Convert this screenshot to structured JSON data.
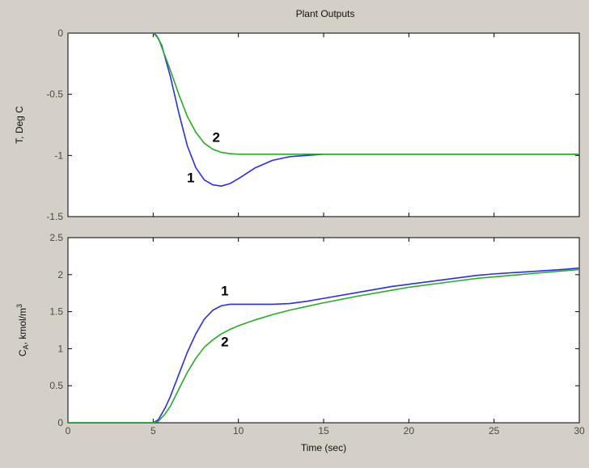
{
  "figure_title": "Plant Outputs",
  "colors": {
    "background": "#d4d0c8",
    "plot_bg": "#ffffff",
    "series_1": "#2a2aff",
    "series_2": "#22b022",
    "axes": "#000000"
  },
  "chart_data": [
    {
      "type": "line",
      "title": "Plant Outputs",
      "xlabel": "",
      "ylabel": "T, Deg C",
      "xlim": [
        0,
        30
      ],
      "ylim": [
        -1.5,
        0
      ],
      "xticks": [
        0,
        5,
        10,
        15,
        20,
        25,
        30
      ],
      "xtick_labels": [
        "",
        "",
        "",
        "",
        "",
        "",
        ""
      ],
      "yticks": [
        0,
        -0.5,
        -1,
        -1.5
      ],
      "ytick_labels": [
        "0",
        "-0.5",
        "-1",
        "-1.5"
      ],
      "grid": false,
      "series": [
        {
          "name": "1",
          "color": "#2a2aff",
          "x": [
            0,
            5,
            5.2,
            5.5,
            6,
            6.5,
            7,
            7.5,
            8,
            8.5,
            9,
            9.5,
            10,
            11,
            12,
            13,
            14,
            15,
            20,
            30
          ],
          "y": [
            0,
            0,
            -0.02,
            -0.1,
            -0.35,
            -0.65,
            -0.92,
            -1.1,
            -1.2,
            -1.24,
            -1.25,
            -1.23,
            -1.19,
            -1.1,
            -1.04,
            -1.01,
            -1.0,
            -0.99,
            -0.99,
            -0.99
          ]
        },
        {
          "name": "2",
          "color": "#22b022",
          "x": [
            0,
            5,
            5.3,
            6,
            6.5,
            7,
            7.5,
            8,
            8.5,
            9,
            9.5,
            10,
            11,
            12,
            15,
            20,
            30
          ],
          "y": [
            0,
            0,
            -0.04,
            -0.3,
            -0.5,
            -0.68,
            -0.81,
            -0.9,
            -0.95,
            -0.975,
            -0.985,
            -0.99,
            -0.99,
            -0.99,
            -0.99,
            -0.99,
            -0.99
          ]
        }
      ],
      "annotations": [
        {
          "text": "2",
          "x": 8.7,
          "y": -0.89
        },
        {
          "text": "1",
          "x": 7.2,
          "y": -1.22
        }
      ]
    },
    {
      "type": "line",
      "title": "",
      "xlabel": "Time (sec)",
      "ylabel": "C",
      "ylabel_sub": "A",
      "ylabel_unit": ", kmol/m",
      "ylabel_sup": "3",
      "xlim": [
        0,
        30
      ],
      "ylim": [
        0,
        2.5
      ],
      "xticks": [
        0,
        5,
        10,
        15,
        20,
        25,
        30
      ],
      "xtick_labels": [
        "0",
        "5",
        "10",
        "15",
        "20",
        "25",
        "30"
      ],
      "yticks": [
        0,
        0.5,
        1,
        1.5,
        2,
        2.5
      ],
      "ytick_labels": [
        "0",
        "0.5",
        "1",
        "1.5",
        "2",
        "2.5"
      ],
      "grid": false,
      "series": [
        {
          "name": "1",
          "color": "#2a2aff",
          "x": [
            0,
            5,
            5.3,
            5.7,
            6,
            6.5,
            7,
            7.5,
            8,
            8.5,
            9,
            9.5,
            10,
            11,
            12,
            13,
            14,
            15,
            17,
            19,
            20,
            22,
            24,
            25,
            27,
            29,
            30
          ],
          "y": [
            0,
            0,
            0.04,
            0.2,
            0.35,
            0.65,
            0.95,
            1.2,
            1.4,
            1.52,
            1.58,
            1.6,
            1.6,
            1.6,
            1.6,
            1.61,
            1.64,
            1.68,
            1.76,
            1.84,
            1.87,
            1.93,
            1.99,
            2.01,
            2.04,
            2.07,
            2.09
          ]
        },
        {
          "name": "2",
          "color": "#22b022",
          "x": [
            0,
            5,
            5.3,
            5.7,
            6,
            6.5,
            7,
            7.5,
            8,
            8.5,
            9,
            9.5,
            10,
            11,
            12,
            13,
            14,
            15,
            17,
            19,
            20,
            22,
            24,
            25,
            27,
            29,
            30
          ],
          "y": [
            0,
            0,
            0.02,
            0.12,
            0.22,
            0.45,
            0.68,
            0.87,
            1.02,
            1.12,
            1.2,
            1.26,
            1.31,
            1.39,
            1.46,
            1.52,
            1.57,
            1.62,
            1.71,
            1.79,
            1.83,
            1.89,
            1.95,
            1.97,
            2.01,
            2.05,
            2.07
          ]
        }
      ],
      "annotations": [
        {
          "text": "1",
          "x": 9.2,
          "y": 1.72
        },
        {
          "text": "2",
          "x": 9.2,
          "y": 1.03
        }
      ]
    }
  ]
}
